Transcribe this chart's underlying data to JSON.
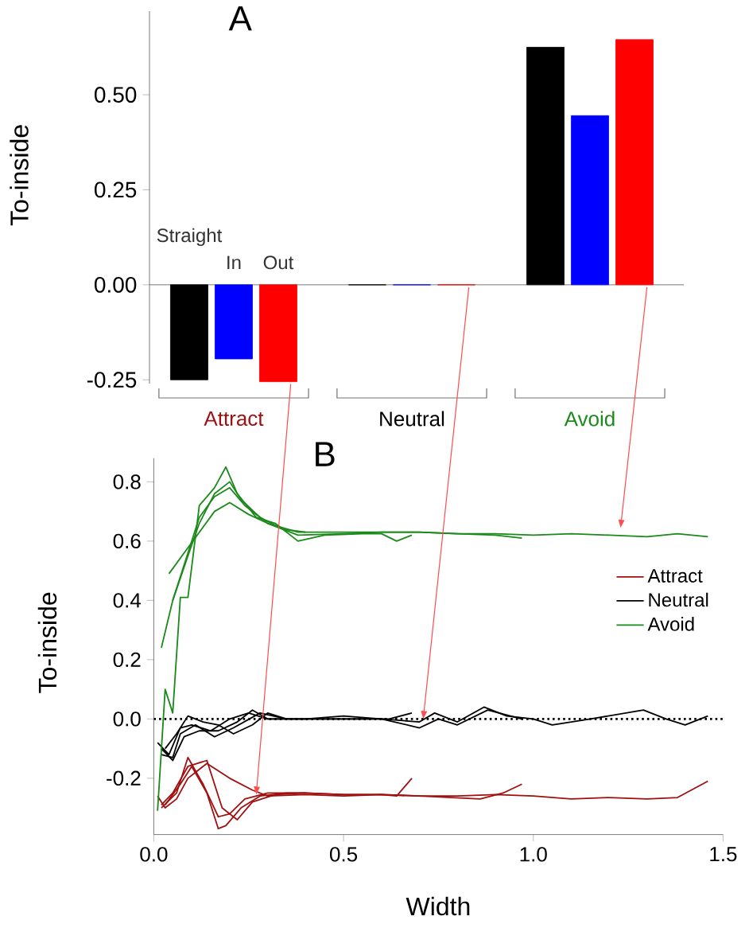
{
  "chart_data": [
    {
      "type": "bar",
      "title": "A",
      "ylabel": "To-inside",
      "categories": [
        "Attract",
        "Neutral",
        "Avoid"
      ],
      "series": [
        {
          "name": "Straight",
          "color": "#000000",
          "values": [
            -0.25,
            0,
            0.625
          ]
        },
        {
          "name": "In",
          "color": "#0000ff",
          "values": [
            -0.195,
            0,
            0.445
          ]
        },
        {
          "name": "Out",
          "color": "#ff0000",
          "values": [
            -0.255,
            0,
            0.645
          ]
        }
      ],
      "ylim": [
        -0.26,
        0.72
      ],
      "yticks": [
        {
          "value": -0.25,
          "label": "-0.25"
        },
        {
          "value": 0,
          "label": "0.00"
        },
        {
          "value": 0.25,
          "label": "0.25"
        },
        {
          "value": 0.5,
          "label": "0.50"
        }
      ]
    },
    {
      "type": "line",
      "title": "B",
      "xlabel": "Width",
      "ylabel": "To-inside",
      "series": [
        {
          "name": "Attract",
          "color": "#a01010",
          "x": [
            0.01,
            0.03,
            0.06,
            0.09,
            0.14,
            0.2,
            0.26,
            0.3,
            0.4,
            0.5,
            0.6,
            0.7,
            0.8,
            0.9,
            1.0,
            1.1,
            1.2,
            1.3,
            1.38,
            1.46
          ],
          "values": [
            -0.26,
            -0.3,
            -0.27,
            -0.2,
            -0.15,
            -0.2,
            -0.24,
            -0.26,
            -0.255,
            -0.26,
            -0.255,
            -0.26,
            -0.26,
            -0.255,
            -0.26,
            -0.27,
            -0.265,
            -0.27,
            -0.265,
            -0.21
          ]
        },
        {
          "color": "#a01010",
          "x": [
            0.02,
            0.06,
            0.09,
            0.13,
            0.17,
            0.2,
            0.24,
            0.3,
            0.4,
            0.5,
            0.6,
            0.7,
            0.86,
            0.92,
            0.97
          ],
          "values": [
            -0.3,
            -0.25,
            -0.13,
            -0.22,
            -0.33,
            -0.32,
            -0.27,
            -0.25,
            -0.25,
            -0.255,
            -0.255,
            -0.26,
            -0.27,
            -0.25,
            -0.22
          ]
        },
        {
          "color": "#a01010",
          "x": [
            0.02,
            0.05,
            0.09,
            0.14,
            0.18,
            0.22,
            0.26,
            0.32,
            0.4,
            0.5,
            0.6,
            0.64,
            0.68
          ],
          "values": [
            -0.29,
            -0.25,
            -0.16,
            -0.14,
            -0.3,
            -0.34,
            -0.28,
            -0.255,
            -0.25,
            -0.255,
            -0.255,
            -0.26,
            -0.2
          ]
        },
        {
          "color": "#a01010",
          "x": [
            0.03,
            0.07,
            0.1,
            0.14,
            0.17,
            0.19,
            0.23,
            0.28,
            0.35,
            0.4
          ],
          "values": [
            -0.29,
            -0.22,
            -0.16,
            -0.25,
            -0.37,
            -0.36,
            -0.3,
            -0.26,
            -0.25,
            -0.25
          ]
        },
        {
          "name": "Neutral",
          "color": "#000000",
          "x": [
            0.01,
            0.04,
            0.07,
            0.1,
            0.15,
            0.2,
            0.25,
            0.3,
            0.4,
            0.5,
            0.6,
            0.7,
            0.74,
            0.8,
            0.87,
            0.93,
            1.0,
            1.05,
            1.15,
            1.29,
            1.35,
            1.4,
            1.46
          ],
          "values": [
            -0.08,
            -0.12,
            -0.03,
            -0.02,
            -0.04,
            0.0,
            0.02,
            0.0,
            0.0,
            0.0,
            0.0,
            -0.01,
            0.02,
            -0.01,
            0.04,
            0.01,
            0.0,
            -0.02,
            0.0,
            0.03,
            0.0,
            -0.02,
            0.01
          ]
        },
        {
          "color": "#000000",
          "x": [
            0.02,
            0.05,
            0.08,
            0.12,
            0.17,
            0.22,
            0.26,
            0.3,
            0.4,
            0.5,
            0.6,
            0.7,
            0.75,
            0.8,
            0.88,
            0.97
          ],
          "values": [
            -0.1,
            -0.14,
            -0.06,
            -0.04,
            -0.04,
            -0.01,
            0.03,
            0.0,
            0.0,
            0.01,
            0.0,
            -0.03,
            0.0,
            -0.02,
            0.03,
            0.0
          ]
        },
        {
          "color": "#000000",
          "x": [
            0.02,
            0.05,
            0.07,
            0.11,
            0.16,
            0.21,
            0.28,
            0.35,
            0.45,
            0.55,
            0.62,
            0.68
          ],
          "values": [
            -0.12,
            -0.13,
            -0.05,
            -0.02,
            -0.06,
            -0.03,
            0.02,
            0.0,
            0.0,
            0.0,
            0.0,
            0.02
          ]
        },
        {
          "color": "#000000",
          "x": [
            0.03,
            0.06,
            0.09,
            0.13,
            0.17,
            0.21,
            0.26,
            0.3,
            0.35
          ],
          "values": [
            -0.1,
            -0.05,
            0.01,
            -0.01,
            -0.02,
            -0.05,
            -0.02,
            0.02,
            0.0
          ]
        },
        {
          "name": "Avoid",
          "color": "#1a8a1a",
          "x": [
            0.02,
            0.05,
            0.08,
            0.12,
            0.16,
            0.2,
            0.24,
            0.3,
            0.38,
            0.5,
            0.6,
            0.7,
            0.8,
            0.9,
            1.0,
            1.1,
            1.2,
            1.3,
            1.38,
            1.46
          ],
          "values": [
            0.24,
            0.4,
            0.52,
            0.68,
            0.75,
            0.78,
            0.72,
            0.66,
            0.63,
            0.63,
            0.63,
            0.63,
            0.625,
            0.625,
            0.62,
            0.625,
            0.62,
            0.615,
            0.625,
            0.615
          ]
        },
        {
          "color": "#1a8a1a",
          "x": [
            0.04,
            0.08,
            0.12,
            0.16,
            0.2,
            0.25,
            0.3,
            0.38,
            0.5,
            0.6,
            0.7,
            0.8,
            0.9,
            0.97
          ],
          "values": [
            0.49,
            0.56,
            0.63,
            0.7,
            0.73,
            0.69,
            0.66,
            0.62,
            0.625,
            0.63,
            0.63,
            0.625,
            0.62,
            0.61
          ]
        },
        {
          "color": "#1a8a1a",
          "x": [
            0.01,
            0.03,
            0.05,
            0.07,
            0.09,
            0.12,
            0.16,
            0.19,
            0.22,
            0.27,
            0.32,
            0.38,
            0.45,
            0.55,
            0.6,
            0.64,
            0.68
          ],
          "values": [
            -0.31,
            0.1,
            0.02,
            0.41,
            0.41,
            0.72,
            0.78,
            0.85,
            0.76,
            0.68,
            0.66,
            0.6,
            0.62,
            0.625,
            0.625,
            0.6,
            0.62
          ]
        },
        {
          "color": "#1a8a1a",
          "x": [
            0.05,
            0.09,
            0.12,
            0.16,
            0.2,
            0.23,
            0.28,
            0.34,
            0.4
          ],
          "values": [
            0.4,
            0.55,
            0.66,
            0.76,
            0.8,
            0.74,
            0.68,
            0.64,
            0.63
          ]
        }
      ],
      "xlim": [
        0,
        1.5
      ],
      "xticks": [
        {
          "value": 0,
          "label": "0.0"
        },
        0.5,
        {
          "value": 1,
          "label": "1.0"
        },
        1.5
      ],
      "ylim": [
        -0.39,
        0.88
      ],
      "yticks": [
        -0.2,
        {
          "value": 0,
          "label": "0.0"
        },
        0.2,
        0.4,
        0.6,
        0.8
      ],
      "ref_lines": [
        {
          "axis": "y",
          "value": 0,
          "color": "#000000",
          "line_style": "dotted"
        }
      ],
      "line_style": "solid",
      "legend": "right"
    }
  ]
}
